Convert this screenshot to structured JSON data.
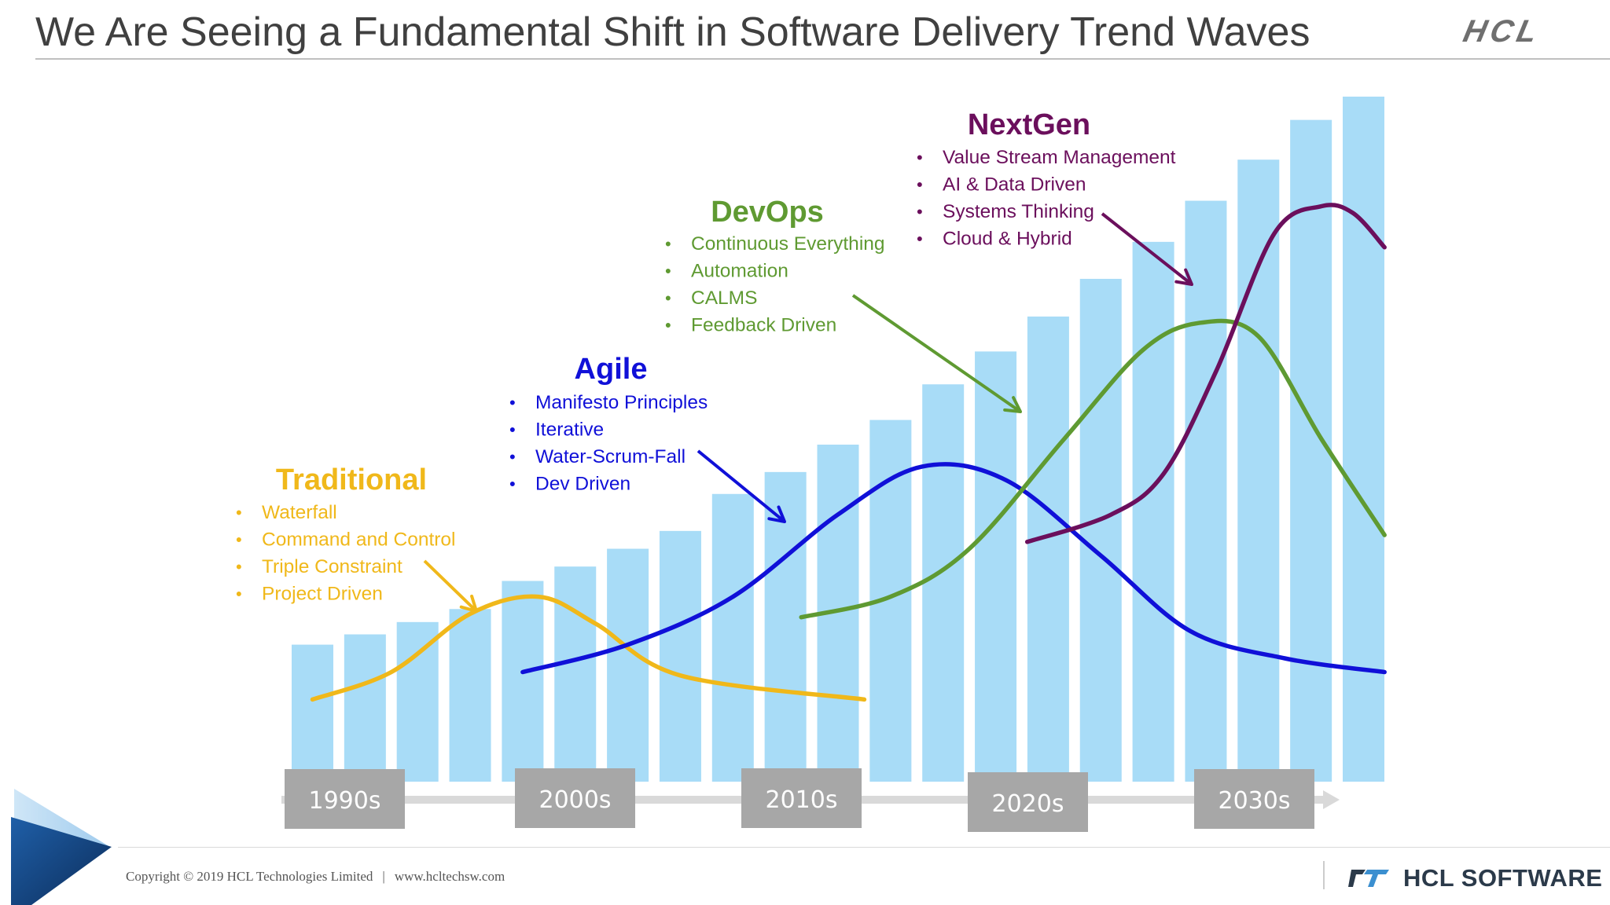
{
  "title": "We Are Seeing a Fundamental Shift in Software Delivery Trend Waves",
  "logo_text": "HCL",
  "footer": {
    "copyright": "Copyright © 2019 HCL Technologies Limited",
    "separator": "|",
    "url": "www.hcltechsw.com",
    "brand": "HCL SOFTWARE"
  },
  "colors": {
    "bars": "#a8dcf7",
    "traditional": "#f0b81a",
    "agile": "#1010d8",
    "devops": "#5f9a32",
    "nextgen": "#6b0f5c",
    "decade_box": "#a7a7a7",
    "timeline": "#d9d9d9"
  },
  "chart_data": {
    "type": "bar",
    "bar_values": [
      0.2,
      0.215,
      0.233,
      0.252,
      0.293,
      0.314,
      0.34,
      0.366,
      0.42,
      0.452,
      0.492,
      0.528,
      0.58,
      0.628,
      0.679,
      0.734,
      0.788,
      0.848,
      0.908,
      0.966,
      1.0
    ],
    "timeline": [
      "1990s",
      "2000s",
      "2010s",
      "2020s",
      "2030s"
    ],
    "waves": [
      {
        "name": "Traditional",
        "color_key": "traditional",
        "bullets": [
          "Waterfall",
          "Command and Control",
          "Triple Constraint",
          "Project Driven"
        ],
        "curve": [
          [
            0,
            0.12
          ],
          [
            1.5,
            0.16
          ],
          [
            3,
            0.245
          ],
          [
            4.3,
            0.27
          ],
          [
            5.4,
            0.23
          ],
          [
            7,
            0.155
          ],
          [
            10.5,
            0.12
          ]
        ]
      },
      {
        "name": "Agile",
        "color_key": "agile",
        "bullets": [
          "Manifesto Principles",
          "Iterative",
          "Water-Scrum-Fall",
          "Dev Driven"
        ],
        "curve": [
          [
            4,
            0.16
          ],
          [
            6,
            0.2
          ],
          [
            8,
            0.27
          ],
          [
            10,
            0.39
          ],
          [
            11.6,
            0.46
          ],
          [
            13.2,
            0.44
          ],
          [
            15,
            0.33
          ],
          [
            16.7,
            0.22
          ],
          [
            18.5,
            0.18
          ],
          [
            20.4,
            0.16
          ]
        ]
      },
      {
        "name": "DevOps",
        "color_key": "devops",
        "bullets": [
          "Continuous Everything",
          "Automation",
          "CALMS",
          "Feedback Driven"
        ],
        "curve": [
          [
            9.3,
            0.24
          ],
          [
            11,
            0.27
          ],
          [
            12.5,
            0.34
          ],
          [
            14.3,
            0.5
          ],
          [
            15.8,
            0.63
          ],
          [
            16.9,
            0.67
          ],
          [
            18,
            0.65
          ],
          [
            19.2,
            0.5
          ],
          [
            20.4,
            0.36
          ]
        ]
      },
      {
        "name": "NextGen",
        "color_key": "nextgen",
        "bullets": [
          "Value Stream Management",
          "AI & Data Driven",
          "Systems Thinking",
          "Cloud & Hybrid"
        ],
        "curve": [
          [
            13.6,
            0.35
          ],
          [
            15.2,
            0.39
          ],
          [
            16.2,
            0.45
          ],
          [
            17.2,
            0.6
          ],
          [
            18.3,
            0.8
          ],
          [
            19.2,
            0.84
          ],
          [
            19.8,
            0.83
          ],
          [
            20.4,
            0.78
          ]
        ]
      }
    ]
  }
}
